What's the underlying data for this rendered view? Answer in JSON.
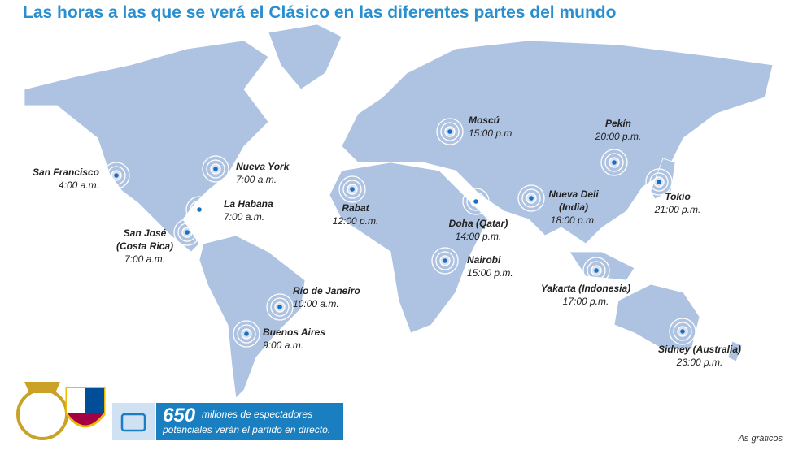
{
  "title": "Las horas a las que se verá el Clásico en las diferentes partes del mundo",
  "cities": [
    {
      "name": [
        "San Francisco"
      ],
      "time": "4:00 a.m."
    },
    {
      "name": [
        "Nueva York"
      ],
      "time": "7:00 a.m."
    },
    {
      "name": [
        "La Habana"
      ],
      "time": "7:00 a.m."
    },
    {
      "name": [
        "San José",
        "(Costa Rica)"
      ],
      "time": "7:00 a.m."
    },
    {
      "name": [
        "Rabat"
      ],
      "time": "12:00 p.m."
    },
    {
      "name": [
        "Moscú"
      ],
      "time": "15:00 p.m."
    },
    {
      "name": [
        "Doha (Qatar)"
      ],
      "time": "14:00 p.m."
    },
    {
      "name": [
        "Nairobi"
      ],
      "time": "15:00 p.m."
    },
    {
      "name": [
        "Nueva Deli",
        "(India)"
      ],
      "time": "18:00 p.m."
    },
    {
      "name": [
        "Pekín"
      ],
      "time": "20:00 p.m."
    },
    {
      "name": [
        "Tokio"
      ],
      "time": "21:00 p.m."
    },
    {
      "name": [
        "Yakarta (Indonesia)"
      ],
      "time": "17:00 p.m."
    },
    {
      "name": [
        "Sidney (Australia)"
      ],
      "time": "23:00 p.m."
    },
    {
      "name": [
        "Río de Janeiro"
      ],
      "time": "10:00 a.m."
    },
    {
      "name": [
        "Buenos Aires"
      ],
      "time": "9:00 a.m."
    }
  ],
  "banner": {
    "number": "650",
    "lines": [
      "millones de espectadores",
      "potenciales verán el partido en directo."
    ]
  },
  "credit": "As gráficos"
}
